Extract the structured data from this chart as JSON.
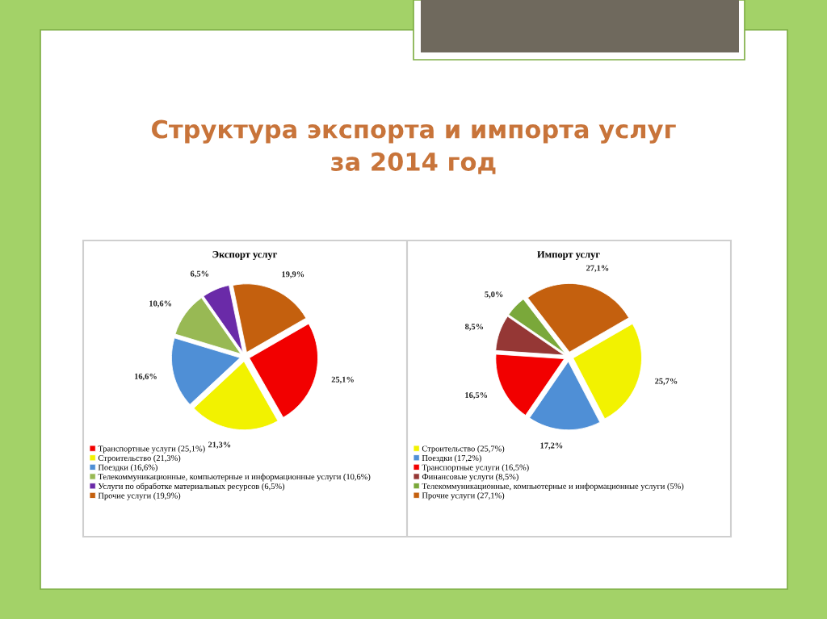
{
  "chart_data": [
    {
      "type": "pie",
      "title": "Экспорт услуг",
      "annotations": [
        "Структура экспорта и импорта услуг\nза 2014 год"
      ],
      "categories": [
        "Транспортные услуги (25,1%)",
        "Строительство (21,3%)",
        "Поездки (16,6%)",
        "Телекоммуникационные, компьютерные и информационные услуги (10,6%)",
        "Услуги по обработке материальных ресурсов (6,5%)",
        "Прочие услуги (19,9%)"
      ],
      "values": [
        25.1,
        21.3,
        16.6,
        10.6,
        6.5,
        19.9
      ],
      "value_labels": [
        "25,1%",
        "21,3%",
        "16,6%",
        "10,6%",
        "6,5%",
        "19,9%"
      ],
      "colors": [
        "#f20000",
        "#f2f200",
        "#4f8fd6",
        "#98b954",
        "#6a2aa8",
        "#c4600e"
      ],
      "legend": "bottom"
    },
    {
      "type": "pie",
      "title": "Импорт услуг",
      "categories": [
        "Строительство (25,7%)",
        "Поездки (17,2%)",
        "Транспортные услуги (16,5%)",
        "Финансовые услуги (8,5%)",
        "Телекоммуникационные, компьютерные и информационные услуги (5%)",
        "Прочие услуги (27,1%)"
      ],
      "values": [
        25.7,
        17.2,
        16.5,
        8.5,
        5.0,
        27.1
      ],
      "value_labels": [
        "25,7%",
        "17,2%",
        "16,5%",
        "8,5%",
        "5,0%",
        "27,1%"
      ],
      "colors": [
        "#f2f200",
        "#4f8fd6",
        "#f20000",
        "#953735",
        "#7aa83a",
        "#c4600e"
      ],
      "legend": "bottom"
    }
  ]
}
